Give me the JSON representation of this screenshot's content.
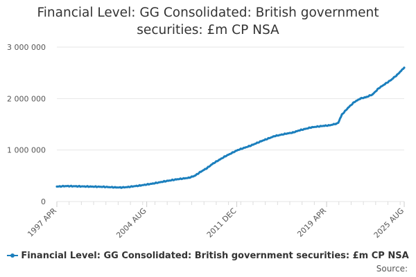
{
  "title_line1": "Financial Level: GG Consolidated: British government",
  "title_line2": "securities: £m CP NSA",
  "source_label": "Source:",
  "line_color": "#1b7fbd",
  "grid_color": "#e6e6e6",
  "chart_data": {
    "type": "line",
    "title": "Financial Level: GG Consolidated: British government securities: £m CP NSA",
    "xlabel": "",
    "ylabel": "",
    "ylim": [
      0,
      3000000
    ],
    "yticks": [
      0,
      1000000,
      2000000,
      3000000
    ],
    "ytick_labels": [
      "0",
      "1 000 000",
      "2 000 000",
      "3 000 000"
    ],
    "xticks": [
      "1997 APR",
      "2004 AUG",
      "2011 DEC",
      "2019 APR",
      "2025 AUG"
    ],
    "xtick_positions": [
      1997.25,
      2004.58,
      2011.92,
      2019.25,
      2025.58
    ],
    "legend_position": "bottom",
    "grid": true,
    "series": [
      {
        "name": "Financial Level: GG Consolidated: British government securities: £m CP NSA",
        "x": [
          1997.25,
          1998.0,
          1999.0,
          2000.0,
          2001.0,
          2002.0,
          2002.5,
          2003.0,
          2004.0,
          2005.0,
          2006.0,
          2007.0,
          2008.0,
          2008.5,
          2009.0,
          2009.5,
          2010.0,
          2010.5,
          2011.0,
          2011.5,
          2012.0,
          2013.0,
          2014.0,
          2015.0,
          2016.0,
          2016.5,
          2017.0,
          2018.0,
          2019.0,
          2019.5,
          2020.0,
          2020.2,
          2020.5,
          2021.0,
          2021.5,
          2022.0,
          2022.5,
          2023.0,
          2023.5,
          2024.0,
          2024.5,
          2025.0,
          2025.58
        ],
        "values": [
          290000,
          300000,
          295000,
          290000,
          285000,
          275000,
          272000,
          280000,
          310000,
          345000,
          390000,
          430000,
          460000,
          500000,
          580000,
          650000,
          740000,
          810000,
          880000,
          940000,
          1000000,
          1080000,
          1180000,
          1270000,
          1320000,
          1340000,
          1380000,
          1440000,
          1470000,
          1480000,
          1510000,
          1530000,
          1690000,
          1820000,
          1930000,
          2000000,
          2030000,
          2080000,
          2200000,
          2280000,
          2360000,
          2460000,
          2600000
        ]
      }
    ]
  }
}
